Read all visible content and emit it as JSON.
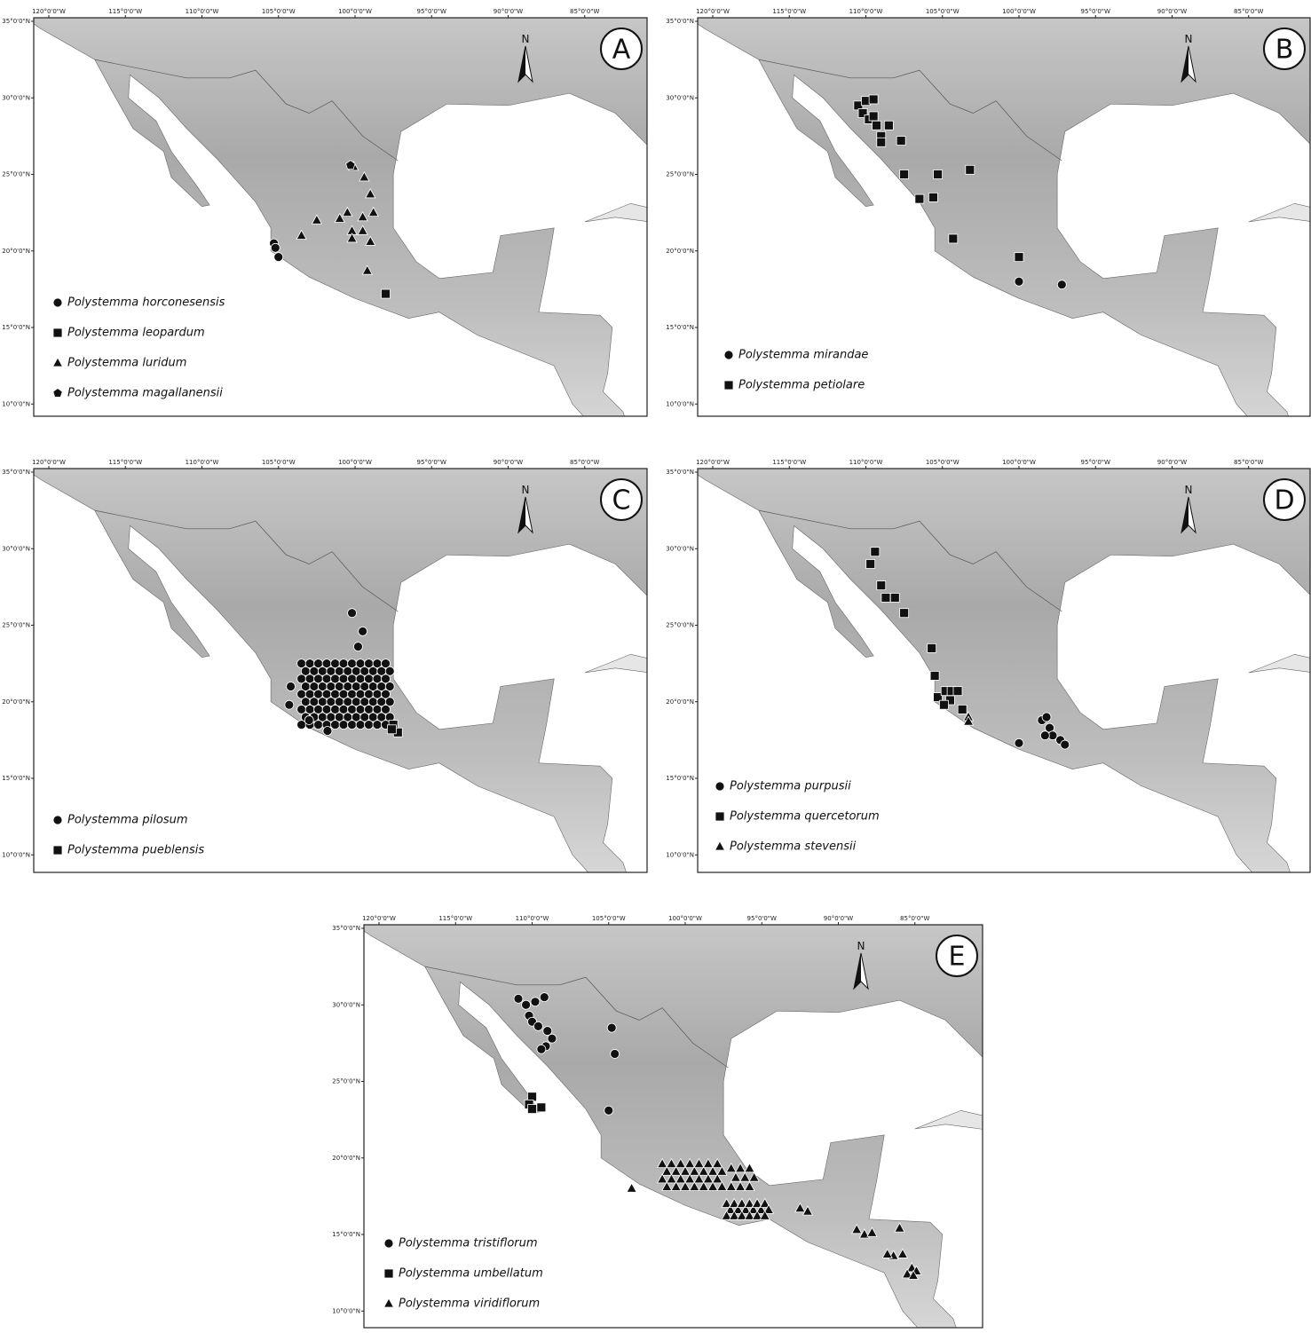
{
  "axes": {
    "longitudes": [
      "120°0'0\"W",
      "115°0'0\"W",
      "110°0'0\"W",
      "105°0'0\"W",
      "100°0'0\"W",
      "95°0'0\"W",
      "90°0'0\"W",
      "85°0'0\"W"
    ],
    "latitudes": [
      "35°0'0\"N",
      "30°0'0\"N",
      "25°0'0\"N",
      "20°0'0\"N",
      "15°0'0\"N",
      "10°0'0\"N"
    ]
  },
  "north_label": "N",
  "panels": [
    {
      "label": "A",
      "legend": [
        "Polystemma horconesensis",
        "Polystemma leopardum",
        "Polystemma luridum",
        "Polystemma magallanensii"
      ]
    },
    {
      "label": "B",
      "legend": [
        "Polystemma mirandae",
        "Polystemma petiolare"
      ]
    },
    {
      "label": "C",
      "legend": [
        "Polystemma pilosum",
        "Polystemma pueblensis"
      ]
    },
    {
      "label": "D",
      "legend": [
        "Polystemma purpusii",
        "Polystemma quercetorum",
        "Polystemma stevensii"
      ]
    },
    {
      "label": "E",
      "legend": [
        "Polystemma tristiflorum",
        "Polystemma umbellatum",
        "Polystemma viridiflorum"
      ]
    }
  ]
}
